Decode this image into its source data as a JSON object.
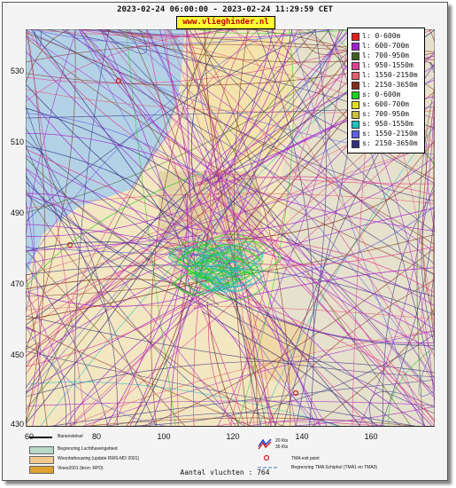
{
  "header": {
    "title": "2023-02-24 06:00:00 - 2023-02-24 11:29:59 CET",
    "brand": "www.vlieghinder.nl"
  },
  "axes": {
    "y_ticks": [
      "530",
      "510",
      "490",
      "470",
      "450",
      "430"
    ],
    "x_ticks": [
      "60",
      "80",
      "100",
      "120",
      "140",
      "160"
    ]
  },
  "legend": [
    {
      "label": "l: 0-600m",
      "color": "#e02020"
    },
    {
      "label": "l: 600-700m",
      "color": "#a020d0"
    },
    {
      "label": "l: 700-950m",
      "color": "#406020"
    },
    {
      "label": "l: 950-1550m",
      "color": "#e04090"
    },
    {
      "label": "l: 1550-2150m",
      "color": "#e06070"
    },
    {
      "label": "l: 2150-3650m",
      "color": "#803018"
    },
    {
      "label": "s: 0-600m",
      "color": "#20d020"
    },
    {
      "label": "s: 600-700m",
      "color": "#e0e020"
    },
    {
      "label": "s: 700-950m",
      "color": "#c8c040"
    },
    {
      "label": "s: 950-1550m",
      "color": "#20c0c0"
    },
    {
      "label": "s: 1550-2150m",
      "color": "#6060e0"
    },
    {
      "label": "s: 2150-3650m",
      "color": "#303080"
    }
  ],
  "map_legend": {
    "items": [
      {
        "label": "Banenstelsel",
        "color": "#111111"
      },
      {
        "label": "Begrenzing Luchthavengebied",
        "color": "#b8d8c8"
      },
      {
        "label": "Woonbebouwing (update RWS-MD 2001)",
        "color": "#f0c890"
      },
      {
        "label": "Vinex2001 (bron: RPD)",
        "color": "#e0a030"
      }
    ],
    "wind_label_1": "20 Kts",
    "wind_label_2": "35 Kts",
    "tma_exit": "TMA exit point",
    "tma_boundary": "Begrenzing TMA Schiphol  (TMA1 en TMA3)"
  },
  "footer": {
    "count": "Aantal vluchten : 764"
  }
}
